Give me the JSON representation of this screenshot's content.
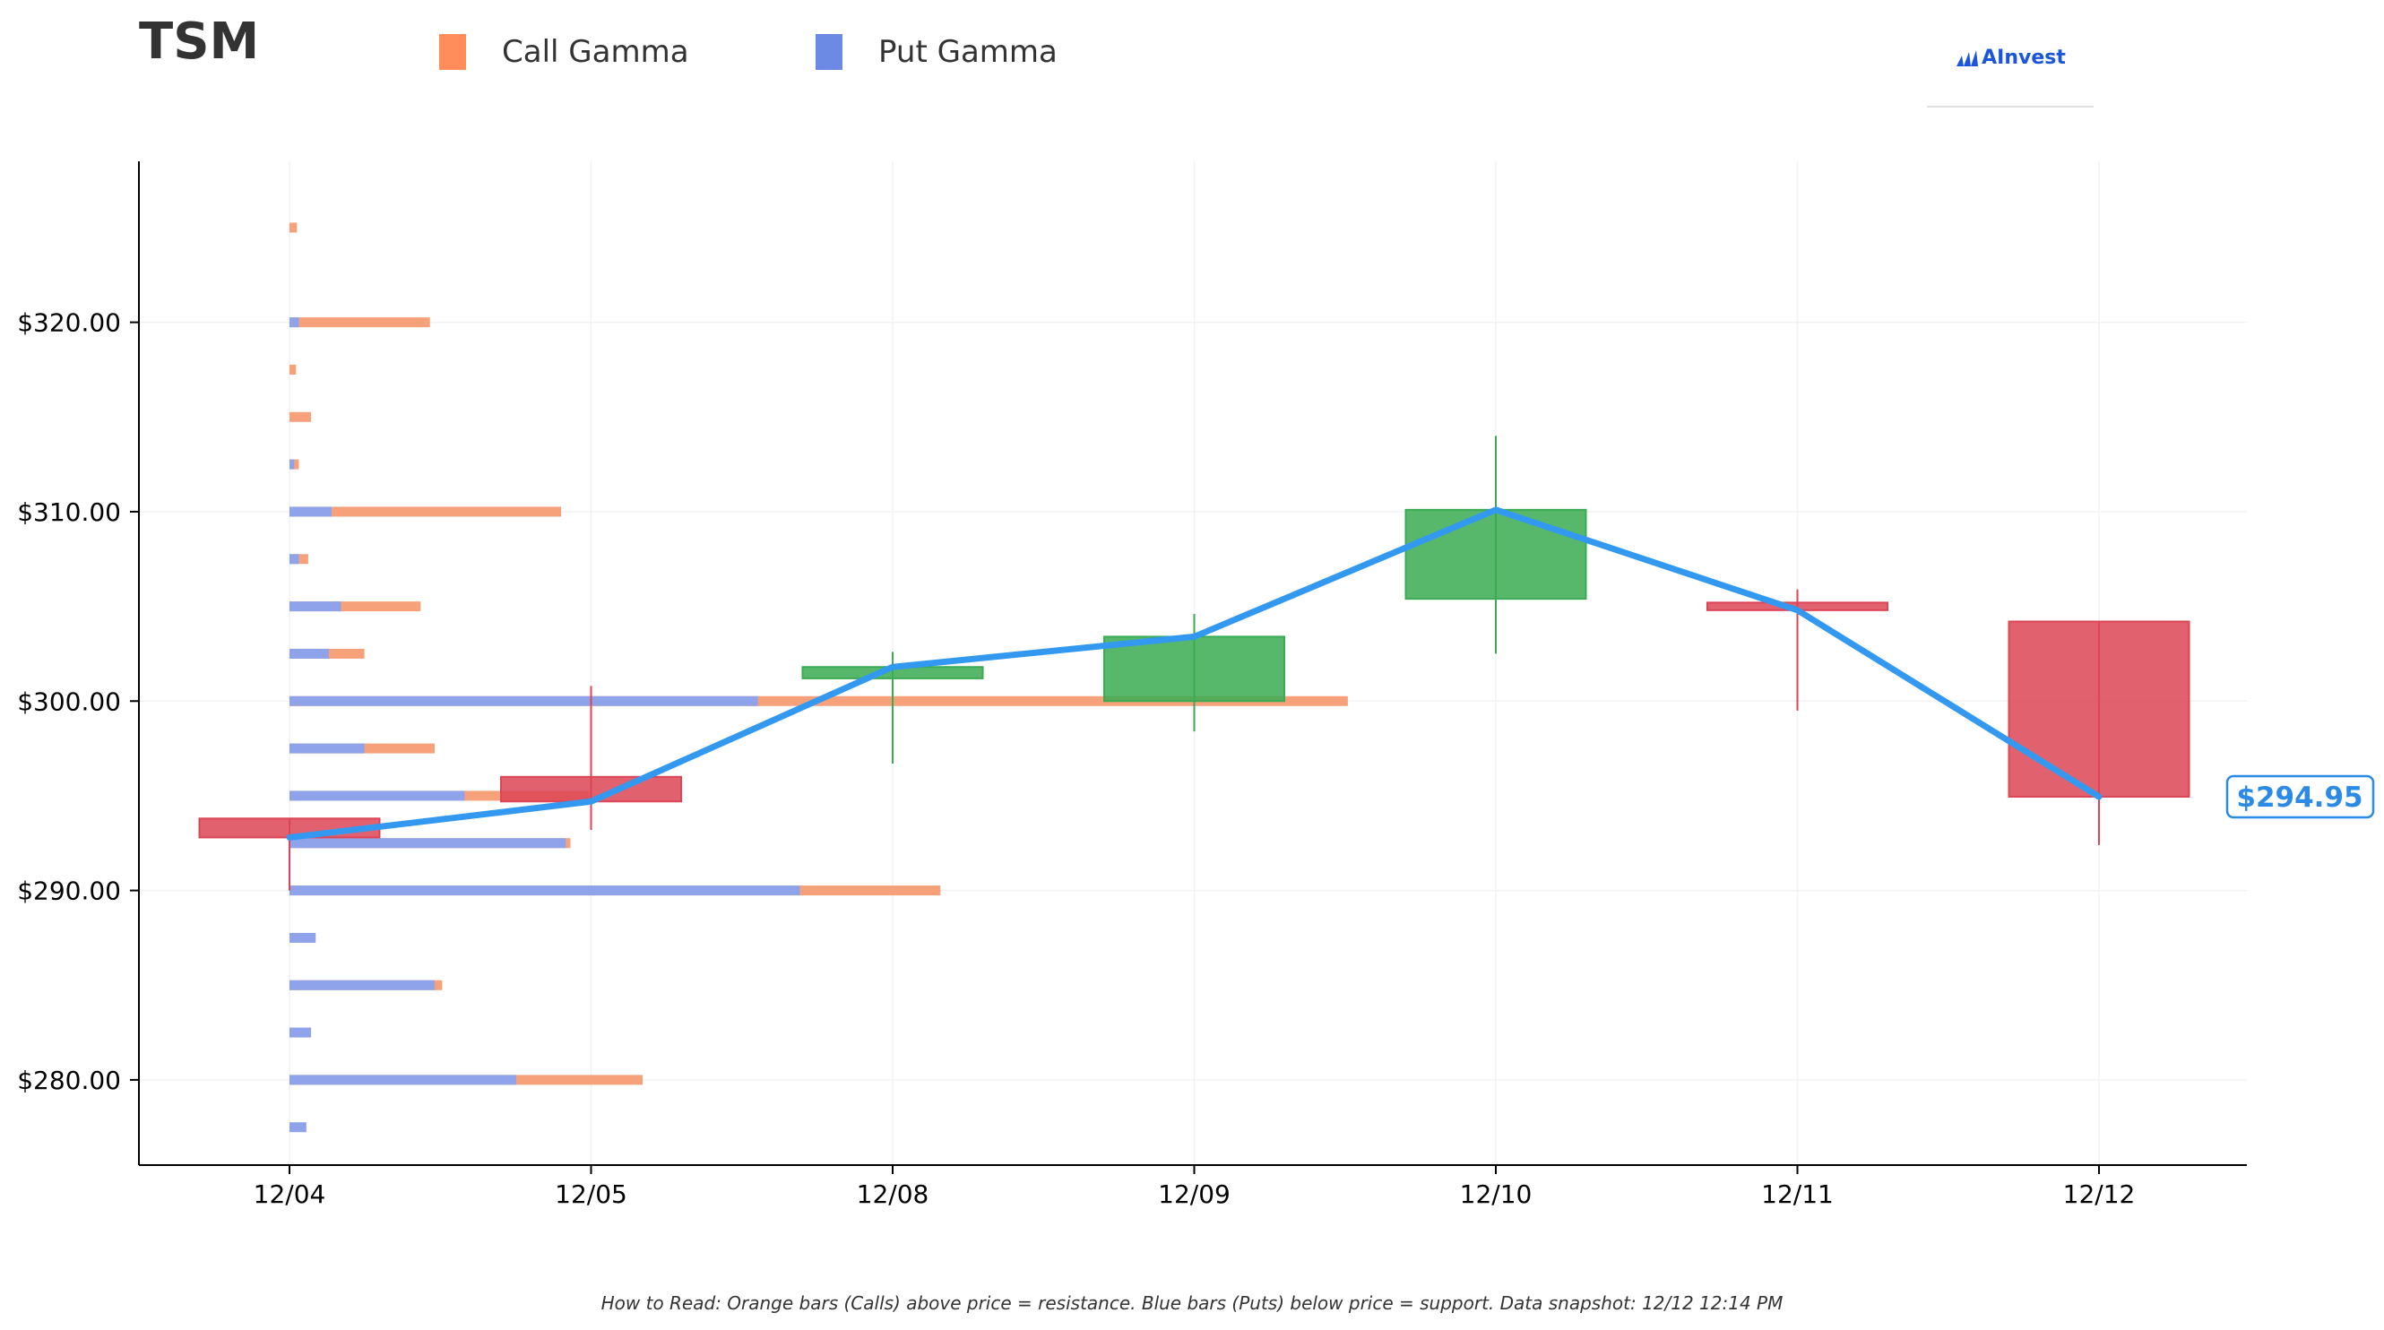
{
  "header": {
    "ticker": "TSM",
    "legend": [
      {
        "label": "Call Gamma",
        "color": "#ff8c5a"
      },
      {
        "label": "Put Gamma",
        "color": "#6c8ae4"
      }
    ],
    "logo_text": "AInvest"
  },
  "footer": {
    "text": "How to Read: Orange bars (Calls) above price = resistance. Blue bars (Puts) below price = support. Data snapshot: 12/12 12:14 PM"
  },
  "colors": {
    "call": "#f7a17a",
    "put": "#8ea3e9",
    "up": "#3aab52",
    "down": "#dc4556",
    "price_line": "#3399f0",
    "price_label": "#2a8ae6"
  },
  "chart_data": {
    "type": "candlestick",
    "title": "TSM",
    "categories": [
      "12/04",
      "12/05",
      "12/08",
      "12/09",
      "12/10",
      "12/11",
      "12/12"
    ],
    "ylim": [
      275.5,
      328.5
    ],
    "y_ticks": [
      280,
      290,
      300,
      310,
      320
    ],
    "y_tick_labels": [
      "$280.00",
      "$290.00",
      "$300.00",
      "$310.00",
      "$320.00"
    ],
    "grid": true,
    "candles": [
      {
        "date": "12/04",
        "open": 293.8,
        "high": 293.8,
        "low": 290.0,
        "close": 292.8
      },
      {
        "date": "12/05",
        "open": 296.0,
        "high": 300.8,
        "low": 293.2,
        "close": 294.7
      },
      {
        "date": "12/08",
        "open": 301.2,
        "high": 302.6,
        "low": 296.7,
        "close": 301.8
      },
      {
        "date": "12/09",
        "open": 300.0,
        "high": 304.6,
        "low": 298.4,
        "close": 303.4
      },
      {
        "date": "12/10",
        "open": 305.4,
        "high": 314.0,
        "low": 302.5,
        "close": 310.1
      },
      {
        "date": "12/11",
        "open": 305.2,
        "high": 305.9,
        "low": 299.5,
        "close": 304.8
      },
      {
        "date": "12/12",
        "open": 304.2,
        "high": 304.2,
        "low": 292.4,
        "close": 294.95
      }
    ],
    "price_line": [
      292.8,
      294.7,
      301.8,
      303.4,
      310.1,
      304.8,
      294.95
    ],
    "last_price_label": "$294.95",
    "gamma_bars": [
      {
        "strike": 325.0,
        "put": 0.0,
        "call": 0.08
      },
      {
        "strike": 320.0,
        "put": 0.1,
        "call": 1.5
      },
      {
        "strike": 317.5,
        "put": 0.0,
        "call": 0.07
      },
      {
        "strike": 315.0,
        "put": 0.0,
        "call": 0.23
      },
      {
        "strike": 312.5,
        "put": 0.05,
        "call": 0.1
      },
      {
        "strike": 310.0,
        "put": 0.45,
        "call": 2.9
      },
      {
        "strike": 307.5,
        "put": 0.1,
        "call": 0.2
      },
      {
        "strike": 305.0,
        "put": 0.55,
        "call": 1.4
      },
      {
        "strike": 302.5,
        "put": 0.42,
        "call": 0.8
      },
      {
        "strike": 300.0,
        "put": 5.0,
        "call": 11.3
      },
      {
        "strike": 297.5,
        "put": 0.8,
        "call": 1.55
      },
      {
        "strike": 295.0,
        "put": 1.87,
        "call": 3.2
      },
      {
        "strike": 292.5,
        "put": 2.95,
        "call": 3.0
      },
      {
        "strike": 290.0,
        "put": 5.45,
        "call": 6.95
      },
      {
        "strike": 287.5,
        "put": 0.28,
        "call": 0.0
      },
      {
        "strike": 285.0,
        "put": 1.55,
        "call": 1.63
      },
      {
        "strike": 282.5,
        "put": 0.23,
        "call": 0.0
      },
      {
        "strike": 280.0,
        "put": 2.42,
        "call": 3.77
      },
      {
        "strike": 277.5,
        "put": 0.18,
        "call": 0.0
      }
    ]
  }
}
